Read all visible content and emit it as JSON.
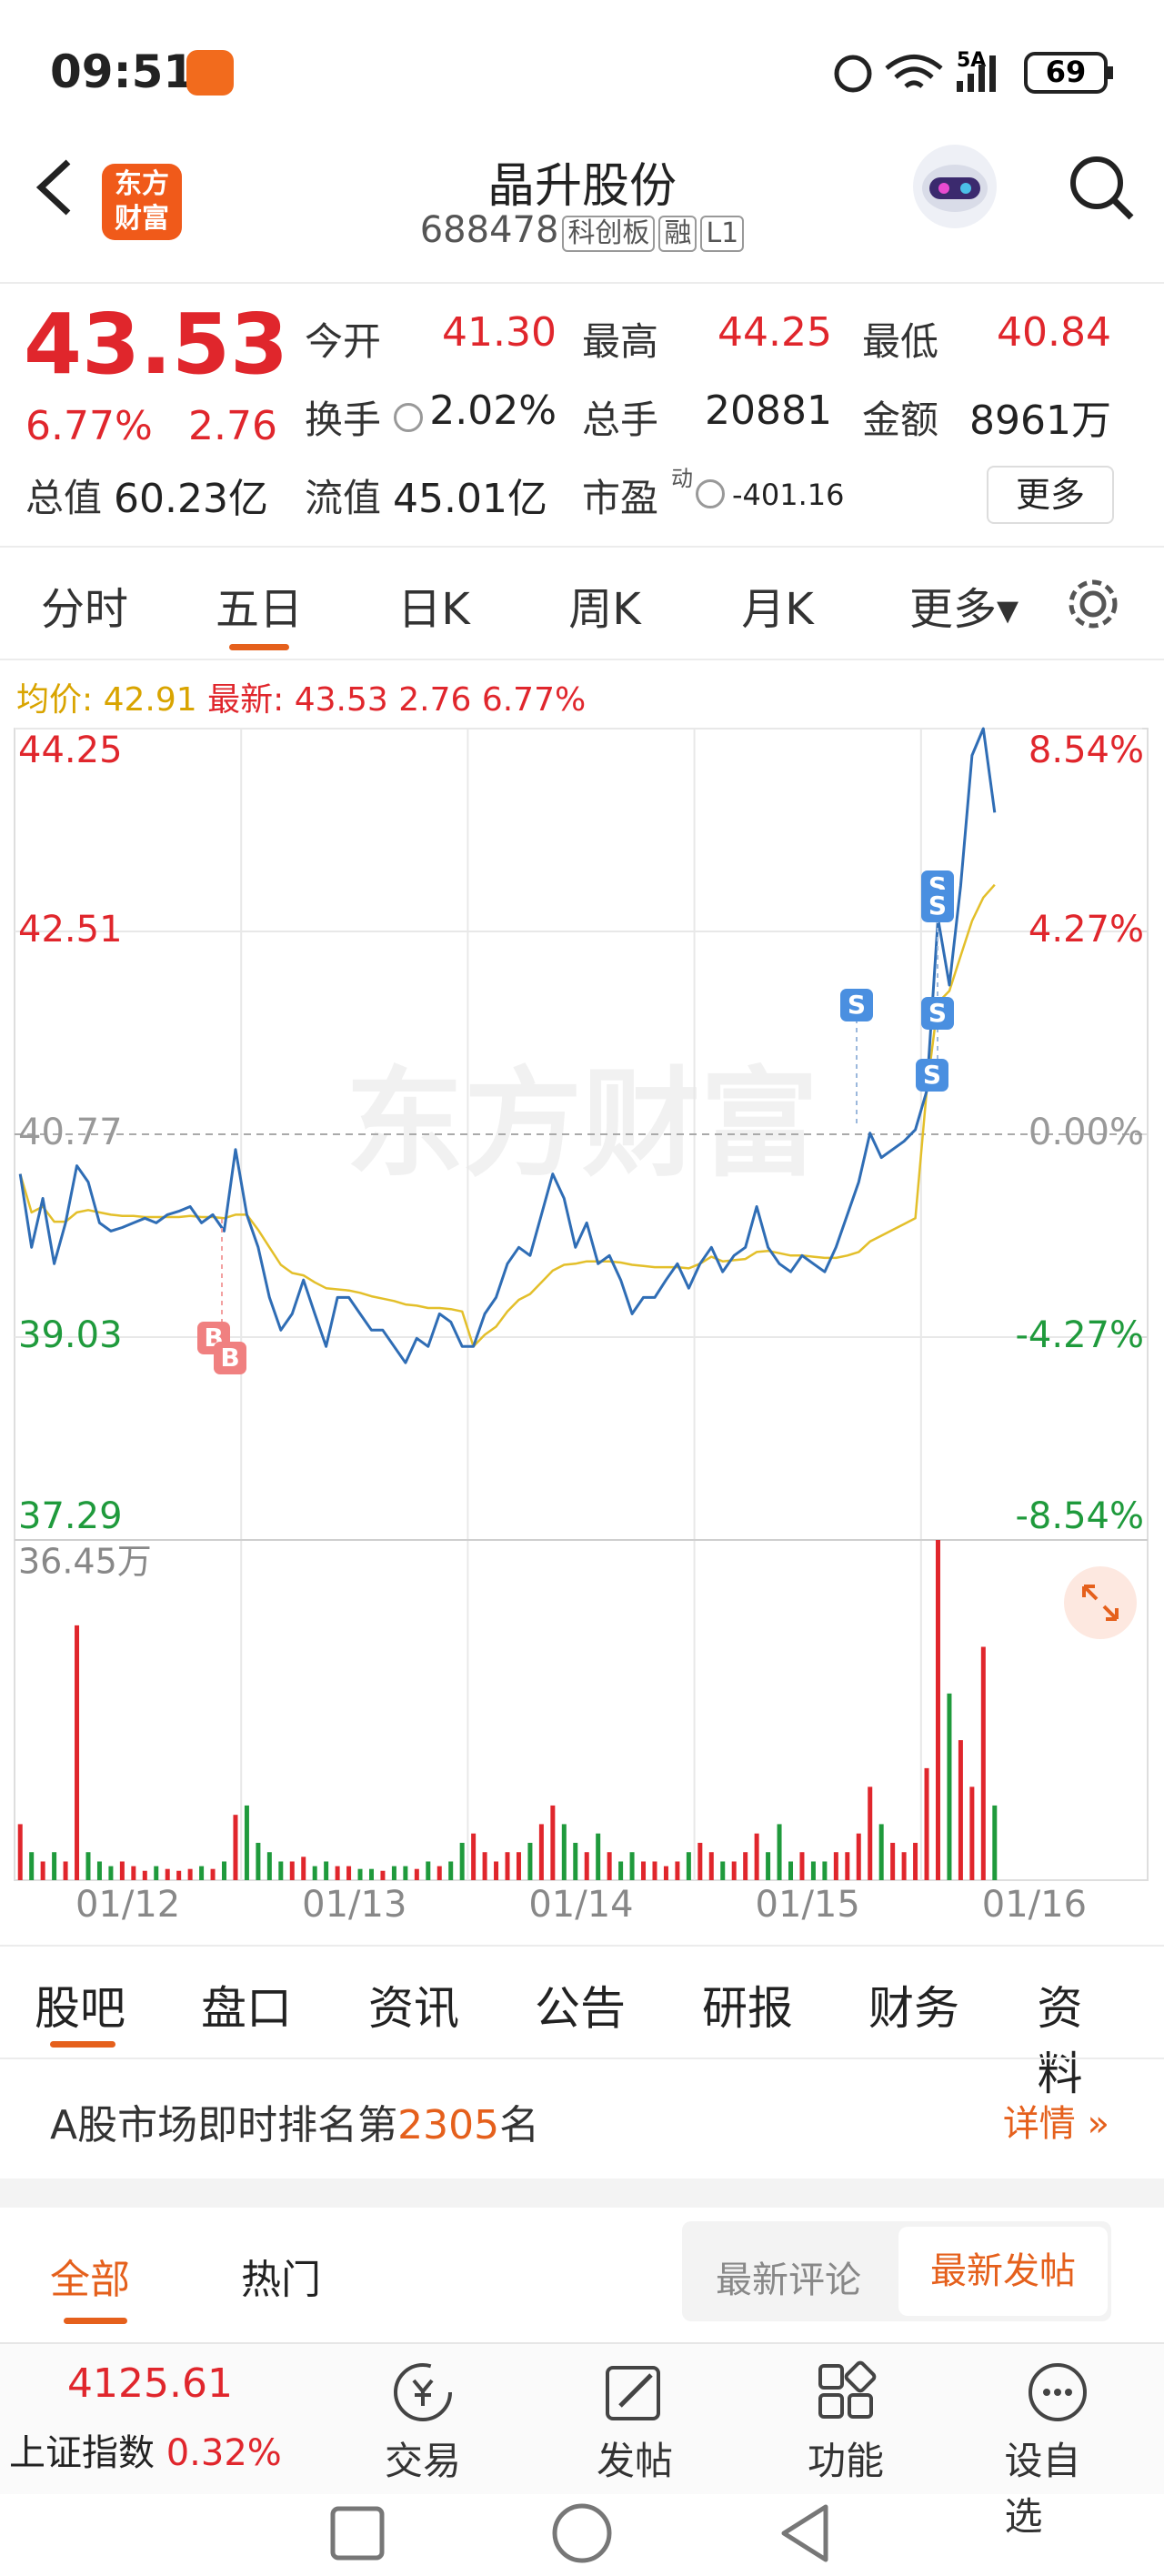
{
  "status_bar": {
    "time": "09:51",
    "network": "5A",
    "battery": "69"
  },
  "header": {
    "logo": "东方财富",
    "title": "晶升股份",
    "code": "688478",
    "tags": [
      "科创板",
      "融",
      "L1"
    ]
  },
  "quote": {
    "price": "43.53",
    "change_pct": "6.77%",
    "change": "2.76",
    "open_label": "今开",
    "open": "41.30",
    "high_label": "最高",
    "high": "44.25",
    "low_label": "最低",
    "low": "40.84",
    "turnover_label": "换手",
    "turnover": "2.02%",
    "volume_label": "总手",
    "volume": "20881",
    "amount_label": "金额",
    "amount": "8961万",
    "mcap_label": "总值",
    "mcap": "60.23亿",
    "float_label": "流值",
    "float": "45.01亿",
    "pe_label": "市盈",
    "pe_sup": "动",
    "pe": "-401.16",
    "more": "更多"
  },
  "tabs": [
    "分时",
    "五日",
    "日K",
    "周K",
    "月K",
    "更多▾"
  ],
  "info_line": {
    "avg_label": "均价:",
    "avg": "42.91",
    "last_label": "最新:",
    "last": "43.53",
    "change": "2.76",
    "change_pct": "6.77%"
  },
  "chart_data": {
    "type": "line",
    "watermark": "东方财富",
    "categories": [
      "01/12",
      "01/13",
      "01/14",
      "01/15",
      "01/16"
    ],
    "price_color": "#2f6db5",
    "avg_color": "#e3bf2a",
    "up_color": "#e0262c",
    "down_color": "#1f9a3c",
    "grid": true,
    "ylim": [
      37.29,
      44.25
    ],
    "yticks": [
      44.25,
      42.51,
      40.77,
      39.03,
      37.29
    ],
    "y2lim": [
      -8.54,
      8.54
    ],
    "y2ticks": [
      {
        "value": 8.54,
        "label": "8.54%"
      },
      {
        "value": 4.27,
        "label": "4.27%"
      },
      {
        "value": 0,
        "label": "0.00%"
      },
      {
        "value": -4.27,
        "label": "-4.27%"
      },
      {
        "value": -8.54,
        "label": "-8.54%"
      }
    ],
    "vol_lim": [
      0,
      36.45
    ],
    "vol_ticks": [
      {
        "value": 36.45,
        "label": "36.45万"
      }
    ],
    "price": [
      [
        40.43,
        39.8,
        40.22,
        39.66,
        40.01,
        40.5,
        40.36,
        40.01,
        39.94,
        39.97,
        40.01,
        40.05,
        40.01,
        40.08,
        40.11,
        40.15,
        40.01,
        40.08,
        39.94,
        40.64
      ],
      [
        40.08,
        39.8,
        39.37,
        39.09,
        39.23,
        39.52,
        39.23,
        38.95,
        39.37,
        39.37,
        39.23,
        39.09,
        39.09,
        38.95,
        38.81,
        39.02,
        38.95,
        39.23,
        39.16,
        38.95
      ],
      [
        38.95,
        39.23,
        39.37,
        39.66,
        39.8,
        39.73,
        40.08,
        40.43,
        40.22,
        39.8,
        40.01,
        39.66,
        39.73,
        39.52,
        39.23,
        39.37,
        39.37,
        39.52,
        39.66,
        39.45
      ],
      [
        39.66,
        39.8,
        39.59,
        39.73,
        39.8,
        40.15,
        39.8,
        39.66,
        39.59,
        39.73,
        39.66,
        39.59,
        39.8,
        40.08,
        40.36,
        40.78,
        40.57,
        40.64,
        40.71,
        40.81
      ],
      [
        41.14,
        42.62,
        42.05,
        42.9,
        44.02,
        44.25,
        43.53
      ]
    ],
    "avg": [
      [
        40.43,
        40.1,
        40.15,
        40.02,
        40.02,
        40.1,
        40.12,
        40.1,
        40.08,
        40.07,
        40.07,
        40.06,
        40.06,
        40.06,
        40.06,
        40.07,
        40.06,
        40.06,
        40.05,
        40.08
      ],
      [
        40.08,
        39.95,
        39.8,
        39.65,
        39.58,
        39.56,
        39.5,
        39.45,
        39.44,
        39.43,
        39.41,
        39.38,
        39.36,
        39.34,
        39.31,
        39.3,
        39.28,
        39.28,
        39.27,
        39.25
      ],
      [
        38.95,
        39.05,
        39.12,
        39.25,
        39.35,
        39.4,
        39.5,
        39.6,
        39.65,
        39.66,
        39.68,
        39.68,
        39.68,
        39.67,
        39.65,
        39.64,
        39.63,
        39.63,
        39.63,
        39.62
      ],
      [
        39.66,
        39.72,
        39.68,
        39.69,
        39.7,
        39.76,
        39.77,
        39.75,
        39.73,
        39.73,
        39.72,
        39.71,
        39.71,
        39.73,
        39.76,
        39.85,
        39.9,
        39.95,
        40.0,
        40.05
      ],
      [
        41.14,
        41.9,
        42.0,
        42.3,
        42.6,
        42.8,
        42.91
      ]
    ],
    "volume": [
      [
        6,
        3,
        2,
        3,
        2,
        27.3,
        3,
        2,
        1.5,
        2,
        1.5,
        1,
        1.5,
        1.2,
        1,
        1.2,
        1.5,
        1.2,
        2,
        7
      ],
      [
        8,
        4,
        3,
        2,
        2,
        2.5,
        1.5,
        2,
        1.5,
        1.5,
        1.2,
        1.2,
        1,
        1.5,
        1.5,
        1.2,
        2,
        1.5,
        2,
        4
      ],
      [
        5,
        3,
        2,
        3,
        3,
        4,
        6,
        8,
        6,
        4,
        3,
        5,
        3,
        2,
        3,
        2,
        2,
        1.5,
        2,
        3
      ],
      [
        4,
        3,
        2,
        2,
        3,
        5,
        3,
        6,
        2,
        3,
        2,
        2,
        3,
        3,
        5,
        10,
        6,
        4,
        3,
        4
      ],
      [
        12,
        36.45,
        20,
        15,
        10,
        25,
        8
      ]
    ],
    "trade_marks": {
      "sell": "S",
      "buy": "B"
    }
  },
  "sections": [
    "股吧",
    "盘口",
    "资讯",
    "公告",
    "研报",
    "财务",
    "资料"
  ],
  "ranking": {
    "prefix": "A股市场即时排名第",
    "rank": "2305",
    "suffix": "名",
    "detail": "详情 »"
  },
  "filters": {
    "all": "全部",
    "hot": "热门",
    "latest_comment": "最新评论",
    "latest_post": "最新发帖"
  },
  "bottom_bar": {
    "index_value": "4125.61",
    "index_name": "上证指数",
    "index_change": "0.32%",
    "actions": [
      "交易",
      "发帖",
      "功能",
      "设自选"
    ]
  }
}
